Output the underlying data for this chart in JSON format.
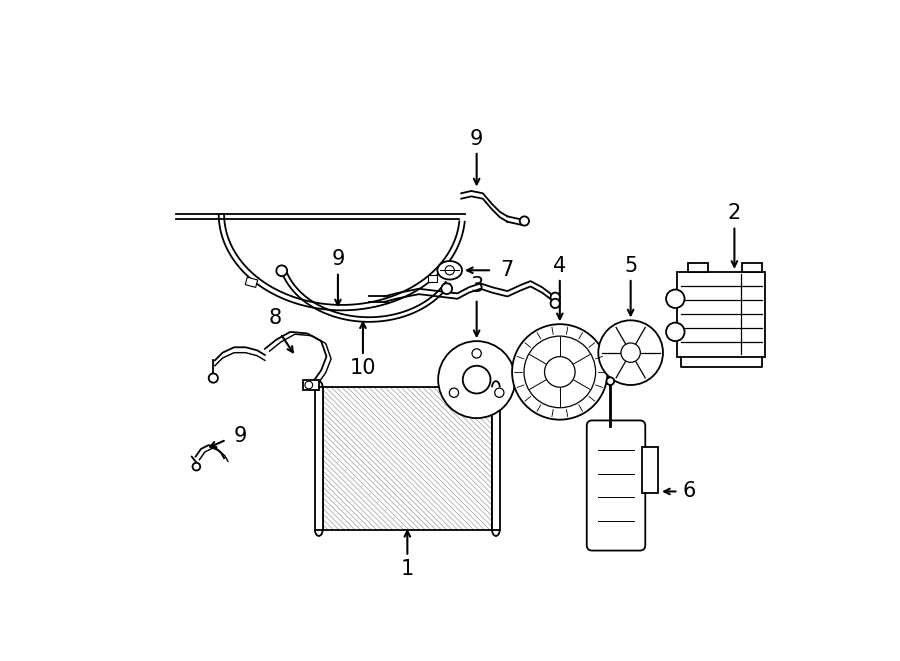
{
  "bg_color": "#ffffff",
  "lc": "#000000",
  "lw": 1.3,
  "fig_w": 9.0,
  "fig_h": 6.61,
  "dpi": 100,
  "font_size": 15
}
